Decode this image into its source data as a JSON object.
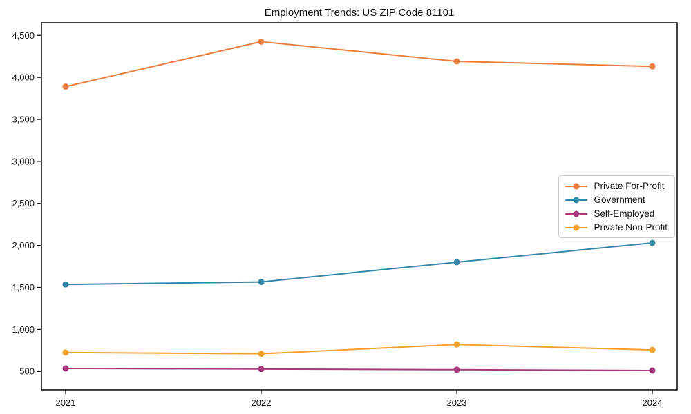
{
  "chart_data": {
    "type": "line",
    "title": "Employment Trends: US ZIP Code 81101",
    "categories": [
      "2021",
      "2022",
      "2023",
      "2024"
    ],
    "series": [
      {
        "name": "Private For-Profit",
        "color": "#e87d3e",
        "values": [
          3890,
          4425,
          4190,
          4130
        ]
      },
      {
        "name": "Government",
        "color": "#3587a8",
        "values": [
          1535,
          1565,
          1800,
          2030
        ]
      },
      {
        "name": "Self-Employed",
        "color": "#a63a7d",
        "values": [
          535,
          528,
          520,
          510
        ]
      },
      {
        "name": "Private Non-Profit",
        "color": "#f0a02c",
        "values": [
          725,
          710,
          820,
          755
        ]
      }
    ],
    "xlabel": "",
    "ylabel": "",
    "ylim": [
      280,
      4650
    ],
    "yticks": [
      500,
      1000,
      1500,
      2000,
      2500,
      3000,
      3500,
      4000,
      4500
    ],
    "ytick_labels": [
      "500",
      "1,000",
      "1,500",
      "2,000",
      "2,500",
      "3,000",
      "3,500",
      "4,000",
      "4,500"
    ],
    "grid": false,
    "legend_position": "center right",
    "frame_color": "#000000",
    "text_color": "#111111",
    "marker": "circle",
    "line_width": 2
  }
}
